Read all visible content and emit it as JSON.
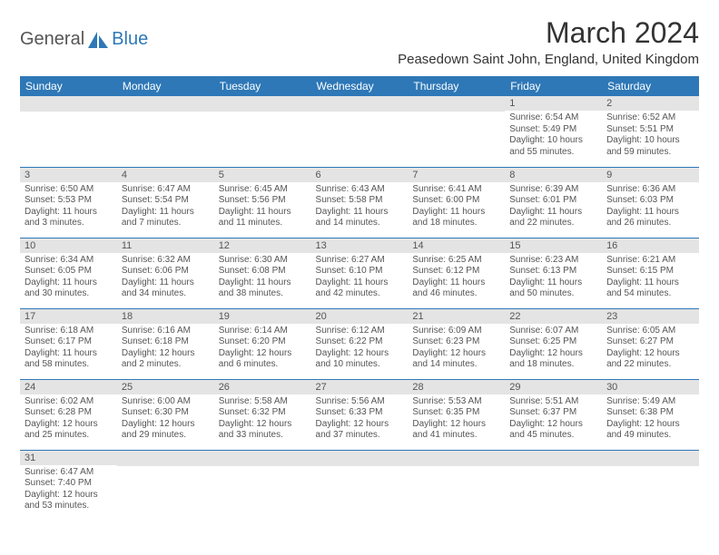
{
  "logo": {
    "text1": "General",
    "text2": "Blue"
  },
  "title": "March 2024",
  "location": "Peasedown Saint John, England, United Kingdom",
  "colors": {
    "accent": "#2e78b7",
    "daynum_bg": "#e4e4e4",
    "text": "#555"
  },
  "weekdays": [
    "Sunday",
    "Monday",
    "Tuesday",
    "Wednesday",
    "Thursday",
    "Friday",
    "Saturday"
  ],
  "weeks": [
    [
      null,
      null,
      null,
      null,
      null,
      {
        "n": "1",
        "sr": "6:54 AM",
        "ss": "5:49 PM",
        "dl": "10 hours and 55 minutes."
      },
      {
        "n": "2",
        "sr": "6:52 AM",
        "ss": "5:51 PM",
        "dl": "10 hours and 59 minutes."
      }
    ],
    [
      {
        "n": "3",
        "sr": "6:50 AM",
        "ss": "5:53 PM",
        "dl": "11 hours and 3 minutes."
      },
      {
        "n": "4",
        "sr": "6:47 AM",
        "ss": "5:54 PM",
        "dl": "11 hours and 7 minutes."
      },
      {
        "n": "5",
        "sr": "6:45 AM",
        "ss": "5:56 PM",
        "dl": "11 hours and 11 minutes."
      },
      {
        "n": "6",
        "sr": "6:43 AM",
        "ss": "5:58 PM",
        "dl": "11 hours and 14 minutes."
      },
      {
        "n": "7",
        "sr": "6:41 AM",
        "ss": "6:00 PM",
        "dl": "11 hours and 18 minutes."
      },
      {
        "n": "8",
        "sr": "6:39 AM",
        "ss": "6:01 PM",
        "dl": "11 hours and 22 minutes."
      },
      {
        "n": "9",
        "sr": "6:36 AM",
        "ss": "6:03 PM",
        "dl": "11 hours and 26 minutes."
      }
    ],
    [
      {
        "n": "10",
        "sr": "6:34 AM",
        "ss": "6:05 PM",
        "dl": "11 hours and 30 minutes."
      },
      {
        "n": "11",
        "sr": "6:32 AM",
        "ss": "6:06 PM",
        "dl": "11 hours and 34 minutes."
      },
      {
        "n": "12",
        "sr": "6:30 AM",
        "ss": "6:08 PM",
        "dl": "11 hours and 38 minutes."
      },
      {
        "n": "13",
        "sr": "6:27 AM",
        "ss": "6:10 PM",
        "dl": "11 hours and 42 minutes."
      },
      {
        "n": "14",
        "sr": "6:25 AM",
        "ss": "6:12 PM",
        "dl": "11 hours and 46 minutes."
      },
      {
        "n": "15",
        "sr": "6:23 AM",
        "ss": "6:13 PM",
        "dl": "11 hours and 50 minutes."
      },
      {
        "n": "16",
        "sr": "6:21 AM",
        "ss": "6:15 PM",
        "dl": "11 hours and 54 minutes."
      }
    ],
    [
      {
        "n": "17",
        "sr": "6:18 AM",
        "ss": "6:17 PM",
        "dl": "11 hours and 58 minutes."
      },
      {
        "n": "18",
        "sr": "6:16 AM",
        "ss": "6:18 PM",
        "dl": "12 hours and 2 minutes."
      },
      {
        "n": "19",
        "sr": "6:14 AM",
        "ss": "6:20 PM",
        "dl": "12 hours and 6 minutes."
      },
      {
        "n": "20",
        "sr": "6:12 AM",
        "ss": "6:22 PM",
        "dl": "12 hours and 10 minutes."
      },
      {
        "n": "21",
        "sr": "6:09 AM",
        "ss": "6:23 PM",
        "dl": "12 hours and 14 minutes."
      },
      {
        "n": "22",
        "sr": "6:07 AM",
        "ss": "6:25 PM",
        "dl": "12 hours and 18 minutes."
      },
      {
        "n": "23",
        "sr": "6:05 AM",
        "ss": "6:27 PM",
        "dl": "12 hours and 22 minutes."
      }
    ],
    [
      {
        "n": "24",
        "sr": "6:02 AM",
        "ss": "6:28 PM",
        "dl": "12 hours and 25 minutes."
      },
      {
        "n": "25",
        "sr": "6:00 AM",
        "ss": "6:30 PM",
        "dl": "12 hours and 29 minutes."
      },
      {
        "n": "26",
        "sr": "5:58 AM",
        "ss": "6:32 PM",
        "dl": "12 hours and 33 minutes."
      },
      {
        "n": "27",
        "sr": "5:56 AM",
        "ss": "6:33 PM",
        "dl": "12 hours and 37 minutes."
      },
      {
        "n": "28",
        "sr": "5:53 AM",
        "ss": "6:35 PM",
        "dl": "12 hours and 41 minutes."
      },
      {
        "n": "29",
        "sr": "5:51 AM",
        "ss": "6:37 PM",
        "dl": "12 hours and 45 minutes."
      },
      {
        "n": "30",
        "sr": "5:49 AM",
        "ss": "6:38 PM",
        "dl": "12 hours and 49 minutes."
      }
    ],
    [
      {
        "n": "31",
        "sr": "6:47 AM",
        "ss": "7:40 PM",
        "dl": "12 hours and 53 minutes."
      },
      null,
      null,
      null,
      null,
      null,
      null
    ]
  ],
  "labels": {
    "sunrise": "Sunrise:",
    "sunset": "Sunset:",
    "daylight": "Daylight:"
  }
}
